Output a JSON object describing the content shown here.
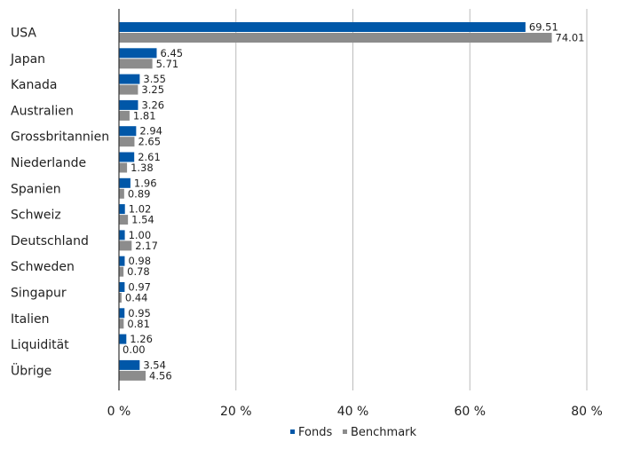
{
  "chart_data": {
    "type": "bar",
    "orientation": "horizontal",
    "categories": [
      "USA",
      "Japan",
      "Kanada",
      "Australien",
      "Grossbritannien",
      "Niederlande",
      "Spanien",
      "Schweiz",
      "Deutschland",
      "Schweden",
      "Singapur",
      "Italien",
      "Liquidität",
      "Übrige"
    ],
    "series": [
      {
        "name": "Fonds",
        "color": "#0057a8",
        "values": [
          69.51,
          6.45,
          3.55,
          3.26,
          2.94,
          2.61,
          1.96,
          1.02,
          1.0,
          0.98,
          0.97,
          0.95,
          1.26,
          3.54
        ],
        "labels": [
          "69.51",
          "6.45",
          "3.55",
          "3.26",
          "2.94",
          "2.61",
          "1.96",
          "1.02",
          "1.00",
          "0.98",
          "0.97",
          "0.95",
          "1.26",
          "3.54"
        ]
      },
      {
        "name": "Benchmark",
        "color": "#8c8c8c",
        "values": [
          74.01,
          5.71,
          3.25,
          1.81,
          2.65,
          1.38,
          0.89,
          1.54,
          2.17,
          0.78,
          0.44,
          0.81,
          0.0,
          4.56
        ],
        "labels": [
          "74.01",
          "5.71",
          "3.25",
          "1.81",
          "2.65",
          "1.38",
          "0.89",
          "1.54",
          "2.17",
          "0.78",
          "0.44",
          "0.81",
          "0.00",
          "4.56"
        ]
      }
    ],
    "xlim": [
      0,
      80
    ],
    "xticks": [
      0,
      20,
      40,
      60,
      80
    ],
    "xtick_labels": [
      "0 %",
      "20 %",
      "40 %",
      "60 %",
      "80 %"
    ],
    "grid": "vertical",
    "legend": "bottom"
  }
}
